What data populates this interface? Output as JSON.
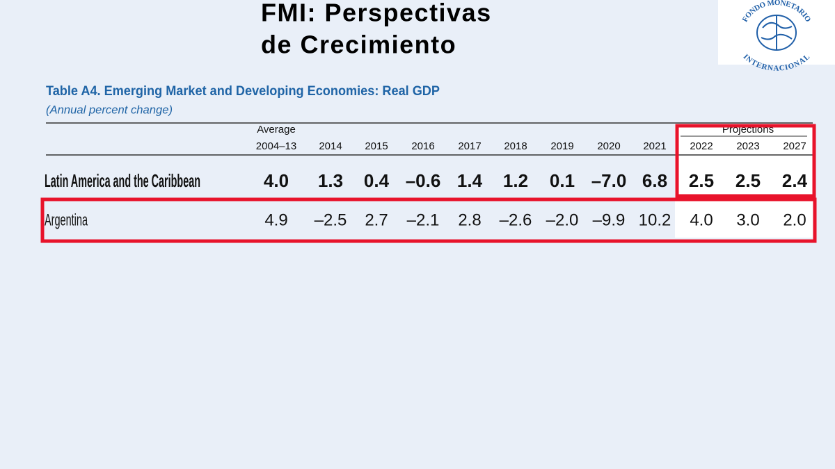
{
  "slide": {
    "title_line1": "FMI: Perspectivas",
    "title_line2": "de Crecimiento",
    "logo": {
      "top": "FONDO MONETARIO",
      "bottom": "INTERNACIONAL"
    }
  },
  "table": {
    "title": "Table A4. Emerging Market and Developing Economies: Real GDP",
    "subtitle": "(Annual percent change)",
    "header_top": "Average",
    "header_group": "Projections",
    "columns": [
      "2004–13",
      "2014",
      "2015",
      "2016",
      "2017",
      "2018",
      "2019",
      "2020",
      "2021",
      "2022",
      "2023",
      "2027"
    ],
    "rows": [
      {
        "label": "Latin America and the Caribbean",
        "values": [
          "4.0",
          "1.3",
          "0.4",
          "–0.6",
          "1.4",
          "1.2",
          "0.1",
          "–7.0",
          "6.8",
          "2.5",
          "2.5",
          "2.4"
        ]
      },
      {
        "label": "Argentina",
        "values": [
          "4.9",
          "–2.5",
          "2.7",
          "–2.1",
          "2.8",
          "–2.6",
          "–2.0",
          "–9.9",
          "10.2",
          "4.0",
          "3.0",
          "2.0"
        ]
      }
    ]
  }
}
